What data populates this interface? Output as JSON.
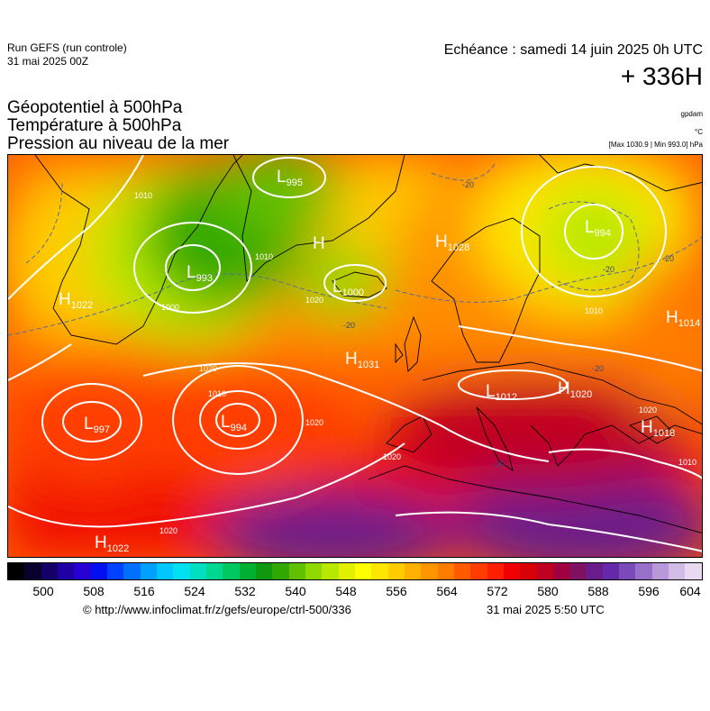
{
  "header": {
    "run_title": "Run GEFS (run controle)",
    "run_date": "31 mai 2025 00Z",
    "valid_time": "Echéance : samedi 14 juin 2025 0h UTC",
    "lead_time": "+ 336H"
  },
  "fields": [
    "Géopotentiel à 500hPa",
    "Température à 500hPa",
    "Pression au niveau de la mer"
  ],
  "units": {
    "geopotential": "gpdam",
    "temperature": "°C",
    "pressure_range": "[Max 1030.9 | Min 993.0] hPa"
  },
  "pressure_centers": [
    {
      "type": "H",
      "value": "1022"
    },
    {
      "type": "L",
      "value": "993"
    },
    {
      "type": "L",
      "value": "995"
    },
    {
      "type": "H",
      "value": ""
    },
    {
      "type": "L",
      "value": "1000"
    },
    {
      "type": "H",
      "value": "1028"
    },
    {
      "type": "L",
      "value": "994"
    },
    {
      "type": "H",
      "value": "1014"
    },
    {
      "type": "H",
      "value": "1031"
    },
    {
      "type": "L",
      "value": "997"
    },
    {
      "type": "L",
      "value": "994"
    },
    {
      "type": "L",
      "value": "1012"
    },
    {
      "type": "H",
      "value": "1020"
    },
    {
      "type": "H",
      "value": "1018"
    },
    {
      "type": "H",
      "value": "1022"
    }
  ],
  "isobar_labels": [
    "1010",
    "1000",
    "1010",
    "1020",
    "1020",
    "1010",
    "1020",
    "1020",
    "1020",
    "1010",
    "1010",
    "1020"
  ],
  "isotherm_labels": [
    "-20",
    "-20",
    "-20",
    "-20",
    "-20",
    "-20"
  ],
  "colorbar": {
    "tick_labels": [
      "500",
      "508",
      "516",
      "524",
      "532",
      "540",
      "548",
      "556",
      "564",
      "572",
      "580",
      "588",
      "596",
      "604"
    ],
    "colors": [
      "#000000",
      "#0a0030",
      "#15006a",
      "#1e00a5",
      "#2800d4",
      "#0010f0",
      "#0040ff",
      "#0070ff",
      "#00a0ff",
      "#00c8ff",
      "#00e0f0",
      "#00e0c0",
      "#00d890",
      "#00c860",
      "#00b030",
      "#109810",
      "#30a800",
      "#60c000",
      "#90d800",
      "#b8e800",
      "#e0f000",
      "#ffff00",
      "#ffe600",
      "#ffcc00",
      "#ffb000",
      "#ff9600",
      "#ff7c00",
      "#ff5a00",
      "#ff3c00",
      "#ff1e00",
      "#f00000",
      "#d80008",
      "#c00020",
      "#a00040",
      "#801060",
      "#6a1c8a",
      "#6428a8",
      "#7a4ab8",
      "#9870c8",
      "#b898d8",
      "#d0bce4",
      "#e8d8f0"
    ]
  },
  "footer": {
    "copyright": "© http://www.infoclimat.fr/z/gefs/europe/ctrl-500/336",
    "generated": "31 mai 2025  5:50 UTC"
  }
}
